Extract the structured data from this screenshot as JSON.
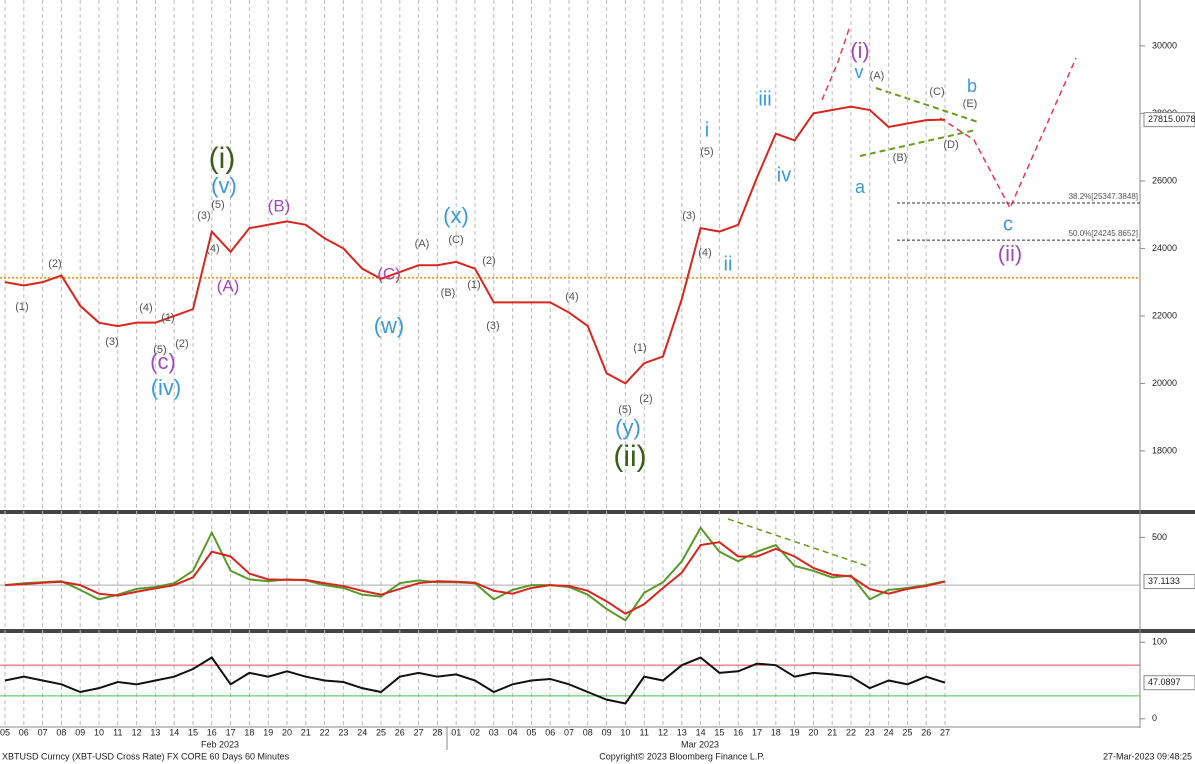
{
  "chart_data": [
    {
      "type": "line",
      "name": "price",
      "categories": [
        "05",
        "06",
        "07",
        "08",
        "09",
        "10",
        "11",
        "12",
        "13",
        "14",
        "15",
        "16",
        "17",
        "18",
        "19",
        "20",
        "21",
        "22",
        "23",
        "24",
        "25",
        "26",
        "27",
        "28",
        "01",
        "02",
        "03",
        "04",
        "05",
        "06",
        "07",
        "08",
        "09",
        "10",
        "11",
        "12",
        "13",
        "14",
        "15",
        "16",
        "17",
        "18",
        "19",
        "20",
        "21",
        "22",
        "23",
        "24",
        "25",
        "26",
        "27"
      ],
      "x_groups": [
        "Feb 2023",
        "Mar 2023"
      ],
      "series": [
        {
          "color": "#d6261f",
          "values": [
            23000,
            22900,
            23000,
            23200,
            22300,
            21800,
            21700,
            21800,
            21800,
            22000,
            22200,
            24500,
            23900,
            24600,
            24700,
            24800,
            24700,
            24300,
            24000,
            23400,
            23100,
            23300,
            23500,
            23500,
            23600,
            23400,
            22400,
            22400,
            22400,
            22400,
            22100,
            21700,
            20300,
            20000,
            20600,
            20800,
            22500,
            24600,
            24500,
            24700,
            26100,
            27400,
            27200,
            28000,
            28100,
            28200,
            28100,
            27600,
            27700,
            27800,
            27815.0078
          ]
        }
      ],
      "ylim": [
        16250,
        31360
      ],
      "yticks": [
        18000,
        20000,
        22000,
        24000,
        26000,
        28000,
        30000
      ],
      "reference_line": {
        "value": 23126,
        "color": "#f08a00"
      },
      "fib_levels": [
        {
          "value": 25347.3848,
          "label": "38.2%[25347.3848]"
        },
        {
          "value": 24245.8652,
          "label": "50.0%[24245.8652]"
        }
      ],
      "annotations": [
        {
          "text": "(1)",
          "color": "#555"
        },
        {
          "text": "(2)",
          "color": "#555"
        },
        {
          "text": "(3)",
          "color": "#555"
        },
        {
          "text": "(4)",
          "color": "#555"
        },
        {
          "text": "(5)",
          "color": "#555"
        },
        {
          "text": "(1)",
          "color": "#555"
        },
        {
          "text": "(2)",
          "color": "#555"
        },
        {
          "text": "(c)",
          "color": "#a04cb8"
        },
        {
          "text": "(iv)",
          "color": "#3a9ad9"
        },
        {
          "text": "(3)",
          "color": "#555"
        },
        {
          "text": "(5)",
          "color": "#555"
        },
        {
          "text": "(4)",
          "color": "#555"
        },
        {
          "text": "(v)",
          "color": "#3a9ad9"
        },
        {
          "text": "(i)",
          "color": "#3b5e1a"
        },
        {
          "text": "(A)",
          "color": "#a04cb8"
        },
        {
          "text": "(B)",
          "color": "#a04cb8"
        },
        {
          "text": "(C)",
          "color": "#a04cb8"
        },
        {
          "text": "(w)",
          "color": "#3a9ad9"
        },
        {
          "text": "(A)",
          "color": "#555"
        },
        {
          "text": "(C)",
          "color": "#555"
        },
        {
          "text": "(x)",
          "color": "#3a9ad9"
        },
        {
          "text": "(B)",
          "color": "#555"
        },
        {
          "text": "(2)",
          "color": "#555"
        },
        {
          "text": "(1)",
          "color": "#555"
        },
        {
          "text": "(3)",
          "color": "#555"
        },
        {
          "text": "(4)",
          "color": "#555"
        },
        {
          "text": "(1)",
          "color": "#555"
        },
        {
          "text": "(2)",
          "color": "#555"
        },
        {
          "text": "(5)",
          "color": "#555"
        },
        {
          "text": "(y)",
          "color": "#3a9ad9"
        },
        {
          "text": "(ii)",
          "color": "#3b5e1a"
        },
        {
          "text": "(3)",
          "color": "#555"
        },
        {
          "text": "(4)",
          "color": "#555"
        },
        {
          "text": "(5)",
          "color": "#555"
        },
        {
          "text": "i",
          "color": "#3a9ad9"
        },
        {
          "text": "ii",
          "color": "#3a9ad9"
        },
        {
          "text": "iii",
          "color": "#3a9ad9"
        },
        {
          "text": "iv",
          "color": "#3a9ad9"
        },
        {
          "text": "(i)",
          "color": "#a04cb8"
        },
        {
          "text": "v",
          "color": "#3a9ad9"
        },
        {
          "text": "(A)",
          "color": "#555"
        },
        {
          "text": "(B)",
          "color": "#555"
        },
        {
          "text": "a",
          "color": "#3a9ad9"
        },
        {
          "text": "(C)",
          "color": "#555"
        },
        {
          "text": "(E)",
          "color": "#555"
        },
        {
          "text": "b",
          "color": "#3a9ad9"
        },
        {
          "text": "(D)",
          "color": "#555"
        },
        {
          "text": "c",
          "color": "#3a9ad9"
        },
        {
          "text": "(ii)",
          "color": "#a04cb8"
        }
      ]
    },
    {
      "type": "line",
      "name": "macd",
      "series": [
        {
          "color": "#5a9a2a",
          "values": [
            0,
            20,
            30,
            40,
            -50,
            -150,
            -100,
            -40,
            -20,
            20,
            150,
            550,
            150,
            60,
            40,
            60,
            50,
            0,
            -30,
            -100,
            -120,
            20,
            50,
            30,
            30,
            20,
            -150,
            -50,
            0,
            0,
            -20,
            -100,
            -250,
            -370,
            -80,
            30,
            250,
            600,
            350,
            250,
            350,
            420,
            200,
            150,
            80,
            100,
            -150,
            -50,
            -30,
            0,
            40
          ]
        },
        {
          "color": "#d6261f",
          "values": [
            0,
            10,
            25,
            35,
            0,
            -90,
            -110,
            -70,
            -35,
            0,
            80,
            350,
            300,
            120,
            60,
            55,
            55,
            20,
            -10,
            -60,
            -100,
            -40,
            20,
            40,
            35,
            25,
            -60,
            -90,
            -30,
            0,
            -10,
            -60,
            -170,
            -300,
            -200,
            -30,
            130,
            420,
            450,
            300,
            300,
            380,
            300,
            180,
            110,
            90,
            -40,
            -90,
            -40,
            -10,
            37.1133
          ]
        }
      ],
      "ylim": [
        -460,
        745
      ],
      "yticks": [
        500
      ],
      "zero_line": true
    },
    {
      "type": "line",
      "name": "rsi",
      "series": [
        {
          "color": "#111",
          "values": [
            50,
            55,
            50,
            45,
            35,
            40,
            48,
            45,
            50,
            55,
            65,
            80,
            45,
            60,
            55,
            62,
            55,
            50,
            48,
            40,
            35,
            55,
            60,
            55,
            58,
            50,
            35,
            45,
            50,
            52,
            45,
            35,
            25,
            20,
            55,
            50,
            70,
            80,
            60,
            62,
            72,
            70,
            55,
            60,
            58,
            55,
            40,
            50,
            45,
            55,
            47.0897
          ]
        }
      ],
      "ylim": [
        -10.7,
        112
      ],
      "yticks": [
        0,
        100
      ],
      "levels": [
        {
          "value": 70,
          "color": "#e05050"
        },
        {
          "value": 30,
          "color": "#4cbf4c"
        }
      ]
    }
  ],
  "footer": {
    "left": "XBTUSD Curncy (XBT-USD Cross Rate) FX CORE 60 Days 60 Minutes",
    "center": "Copyright© 2023 Bloomberg Finance L.P.",
    "right": "27-Mar-2023 09:48:25"
  }
}
